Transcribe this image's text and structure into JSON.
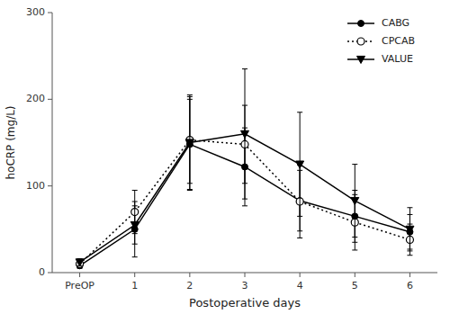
{
  "chart_data": {
    "type": "line",
    "xlabel": "Postoperative days",
    "ylabel": "hoCRP (mg/L)",
    "categories": [
      "PreOP",
      "1",
      "2",
      "3",
      "4",
      "5",
      "6"
    ],
    "ylim": [
      0,
      300
    ],
    "yticks": [
      0,
      100,
      200,
      300
    ],
    "grid": false,
    "legend": "upper right",
    "series": [
      {
        "name": "CABG",
        "color": "#000000",
        "marker": "circle",
        "line_style": "solid",
        "values": [
          8,
          50,
          148,
          122,
          83,
          65,
          47
        ],
        "errors": [
          3,
          32,
          52,
          45,
          35,
          30,
          20
        ]
      },
      {
        "name": "CPCAB",
        "color": "#000000",
        "marker": "open-circle",
        "line_style": "dotted",
        "values": [
          10,
          70,
          153,
          148,
          82,
          58,
          38
        ],
        "errors": [
          3,
          25,
          50,
          45,
          42,
          32,
          18
        ]
      },
      {
        "name": "VALUE",
        "color": "#000000",
        "marker": "triangle-down",
        "line_style": "solid",
        "values": [
          12,
          55,
          150,
          160,
          125,
          83,
          50
        ],
        "errors": [
          4,
          22,
          55,
          75,
          60,
          42,
          25
        ]
      }
    ]
  }
}
